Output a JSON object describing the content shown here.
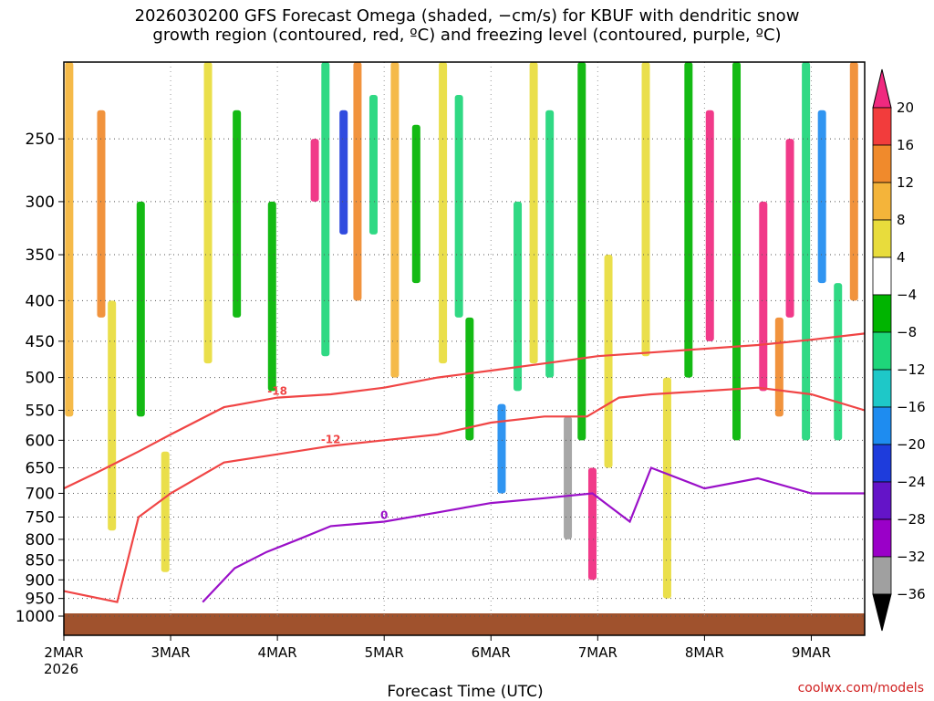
{
  "chart_data": {
    "type": "heatmap",
    "title_lines": [
      "2026030200 GFS Forecast Omega (shaded, −cm/s) for KBUF with dendritic snow",
      "growth region (contoured, red, ºC) and freezing level (contoured, purple, ºC)"
    ],
    "xlabel": "Forecast Time (UTC)",
    "credit": "coolwx.com/models",
    "x_ticks": [
      "2MAR",
      "3MAR",
      "4MAR",
      "5MAR",
      "6MAR",
      "7MAR",
      "8MAR",
      "9MAR"
    ],
    "x_year": "2026",
    "x_range_days": [
      0,
      7.5
    ],
    "y_ticks": [
      250,
      300,
      350,
      400,
      450,
      500,
      550,
      600,
      650,
      700,
      750,
      800,
      850,
      900,
      950,
      1000
    ],
    "y_range_hpa": [
      200,
      1000
    ],
    "colorbar": {
      "labels": [
        "20",
        "16",
        "12",
        "8",
        "4",
        "−4",
        "−8",
        "−12",
        "−16",
        "−20",
        "−24",
        "−28",
        "−32",
        "−36"
      ],
      "colors": [
        "#f0297f",
        "#f23c3c",
        "#f08a2c",
        "#f4b43a",
        "#e8dc3c",
        "#ffffff",
        "#00b400",
        "#1ed67a",
        "#1ec8c8",
        "#1e8cf0",
        "#1e3cdc",
        "#6414c8",
        "#9a00c8",
        "#a0a0a0",
        "#000000"
      ]
    },
    "bands": [
      {
        "day": 0.05,
        "p_top": 200,
        "p_bot": 560,
        "value": 8
      },
      {
        "day": 0.35,
        "p_top": 230,
        "p_bot": 420,
        "value": 12
      },
      {
        "day": 0.45,
        "p_top": 400,
        "p_bot": 780,
        "value": 6
      },
      {
        "day": 0.72,
        "p_top": 300,
        "p_bot": 560,
        "value": -8
      },
      {
        "day": 0.95,
        "p_top": 620,
        "p_bot": 880,
        "value": 6
      },
      {
        "day": 1.35,
        "p_top": 200,
        "p_bot": 480,
        "value": 6
      },
      {
        "day": 1.62,
        "p_top": 230,
        "p_bot": 420,
        "value": -8
      },
      {
        "day": 1.95,
        "p_top": 300,
        "p_bot": 520,
        "value": -8
      },
      {
        "day": 2.35,
        "p_top": 250,
        "p_bot": 300,
        "value": 20
      },
      {
        "day": 2.45,
        "p_top": 200,
        "p_bot": 470,
        "value": -12
      },
      {
        "day": 2.62,
        "p_top": 230,
        "p_bot": 330,
        "value": -24
      },
      {
        "day": 2.75,
        "p_top": 200,
        "p_bot": 400,
        "value": 12
      },
      {
        "day": 2.9,
        "p_top": 220,
        "p_bot": 330,
        "value": -12
      },
      {
        "day": 3.1,
        "p_top": 200,
        "p_bot": 500,
        "value": 8
      },
      {
        "day": 3.3,
        "p_top": 240,
        "p_bot": 380,
        "value": -8
      },
      {
        "day": 3.55,
        "p_top": 200,
        "p_bot": 480,
        "value": 6
      },
      {
        "day": 3.7,
        "p_top": 220,
        "p_bot": 420,
        "value": -12
      },
      {
        "day": 3.8,
        "p_top": 420,
        "p_bot": 600,
        "value": -8
      },
      {
        "day": 4.1,
        "p_top": 540,
        "p_bot": 700,
        "value": -20
      },
      {
        "day": 4.25,
        "p_top": 300,
        "p_bot": 520,
        "value": -12
      },
      {
        "day": 4.4,
        "p_top": 200,
        "p_bot": 480,
        "value": 6
      },
      {
        "day": 4.55,
        "p_top": 230,
        "p_bot": 500,
        "value": -12
      },
      {
        "day": 4.72,
        "p_top": 560,
        "p_bot": 800,
        "value": -36
      },
      {
        "day": 4.85,
        "p_top": 200,
        "p_bot": 600,
        "value": -8
      },
      {
        "day": 4.95,
        "p_top": 650,
        "p_bot": 900,
        "value": 20
      },
      {
        "day": 5.1,
        "p_top": 350,
        "p_bot": 650,
        "value": 6
      },
      {
        "day": 5.45,
        "p_top": 200,
        "p_bot": 470,
        "value": 6
      },
      {
        "day": 5.65,
        "p_top": 500,
        "p_bot": 950,
        "value": 6
      },
      {
        "day": 5.85,
        "p_top": 200,
        "p_bot": 500,
        "value": -8
      },
      {
        "day": 6.05,
        "p_top": 230,
        "p_bot": 450,
        "value": 20
      },
      {
        "day": 6.3,
        "p_top": 200,
        "p_bot": 600,
        "value": -8
      },
      {
        "day": 6.55,
        "p_top": 300,
        "p_bot": 520,
        "value": 20
      },
      {
        "day": 6.7,
        "p_top": 420,
        "p_bot": 560,
        "value": 12
      },
      {
        "day": 6.8,
        "p_top": 250,
        "p_bot": 420,
        "value": 20
      },
      {
        "day": 6.95,
        "p_top": 200,
        "p_bot": 600,
        "value": -12
      },
      {
        "day": 7.1,
        "p_top": 230,
        "p_bot": 380,
        "value": -20
      },
      {
        "day": 7.25,
        "p_top": 380,
        "p_bot": 600,
        "value": -12
      },
      {
        "day": 7.4,
        "p_top": 200,
        "p_bot": 400,
        "value": 12
      }
    ],
    "red_contours": [
      {
        "label": "-18",
        "points": [
          [
            0,
            690
          ],
          [
            0.3,
            660
          ],
          [
            0.7,
            620
          ],
          [
            1.0,
            590
          ],
          [
            1.5,
            545
          ],
          [
            2.0,
            530
          ],
          [
            2.5,
            525
          ],
          [
            3.0,
            515
          ],
          [
            3.5,
            500
          ],
          [
            4.0,
            490
          ],
          [
            4.5,
            480
          ],
          [
            5.0,
            470
          ],
          [
            5.5,
            465
          ],
          [
            6.0,
            460
          ],
          [
            6.5,
            455
          ],
          [
            7.0,
            448
          ],
          [
            7.5,
            440
          ]
        ]
      },
      {
        "label": "-12",
        "points": [
          [
            0,
            930
          ],
          [
            0.5,
            960
          ],
          [
            0.7,
            750
          ],
          [
            1.0,
            700
          ],
          [
            1.5,
            640
          ],
          [
            2.0,
            625
          ],
          [
            2.5,
            610
          ],
          [
            3.0,
            600
          ],
          [
            3.5,
            590
          ],
          [
            4.0,
            570
          ],
          [
            4.5,
            560
          ],
          [
            4.9,
            560
          ],
          [
            5.2,
            530
          ],
          [
            5.5,
            525
          ],
          [
            6.0,
            520
          ],
          [
            6.5,
            515
          ],
          [
            7.0,
            525
          ],
          [
            7.5,
            550
          ]
        ]
      }
    ],
    "purple_contours": [
      {
        "label": "0",
        "points": [
          [
            1.3,
            960
          ],
          [
            1.6,
            870
          ],
          [
            1.9,
            830
          ],
          [
            2.2,
            800
          ],
          [
            2.5,
            770
          ],
          [
            3.0,
            760
          ],
          [
            3.5,
            740
          ],
          [
            4.0,
            720
          ],
          [
            4.5,
            710
          ],
          [
            4.95,
            700
          ],
          [
            5.3,
            760
          ],
          [
            5.5,
            650
          ],
          [
            6.0,
            690
          ],
          [
            6.5,
            670
          ],
          [
            7.0,
            700
          ],
          [
            7.5,
            700
          ]
        ]
      }
    ]
  }
}
